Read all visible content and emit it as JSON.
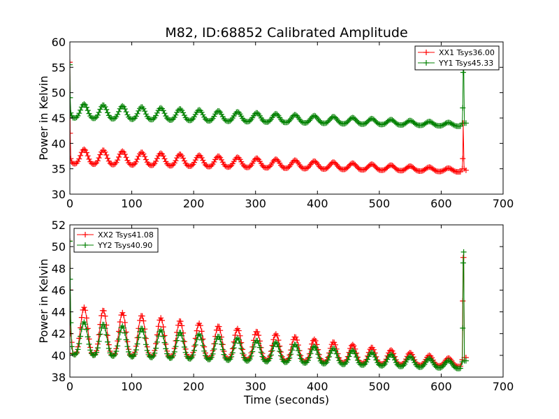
{
  "title": "M82, ID:68852 Calibrated Amplitude",
  "chart_data": [
    {
      "type": "line",
      "title": "M82, ID:68852 Calibrated Amplitude",
      "xlabel": "",
      "ylabel": "Power in Kelvin",
      "xlim": [
        0,
        700
      ],
      "ylim": [
        30,
        60
      ],
      "xticks": [
        "0",
        "100",
        "200",
        "300",
        "400",
        "500",
        "600",
        "700"
      ],
      "yticks": [
        "30",
        "35",
        "40",
        "45",
        "50",
        "55",
        "60"
      ],
      "grid": false,
      "legend_position": "top-right",
      "marker": "+",
      "series": [
        {
          "name": "XX1 Tsys36.00",
          "color": "#ff0000",
          "start": {
            "x": [
              0,
              0.5,
              1.5,
              3
            ],
            "y": [
              56.0,
              42.0,
              37.0,
              36.3
            ]
          },
          "baseline_start": 36.6,
          "baseline_end": 34.5,
          "peak_start": 2.4,
          "peak_end": 0.5,
          "period": 31,
          "first_peak": 23,
          "t_end": 632,
          "end": {
            "x": [
              634,
              634.8,
              635.5,
              637,
              640
            ],
            "y": [
              35.0,
              37.0,
              44.0,
              35.0,
              34.7
            ]
          }
        },
        {
          "name": "YY1 Tsys45.33",
          "color": "#008000",
          "start": {
            "x": [
              0,
              0.5,
              1.5,
              3
            ],
            "y": [
              55.5,
              49.0,
              46.0,
              45.4
            ]
          },
          "baseline_start": 45.6,
          "baseline_end": 43.5,
          "peak_start": 2.3,
          "peak_end": 0.5,
          "period": 31,
          "first_peak": 23,
          "t_end": 632,
          "end": {
            "x": [
              634,
              634.8,
              635.5,
              636.3,
              637.5,
              640
            ],
            "y": [
              44.0,
              47.0,
              54.0,
              56.0,
              44.0,
              44.0
            ]
          }
        }
      ]
    },
    {
      "type": "line",
      "xlabel": "Time (seconds)",
      "ylabel": "Power in Kelvin",
      "xlim": [
        0,
        700
      ],
      "ylim": [
        38,
        52
      ],
      "xticks": [
        "0",
        "100",
        "200",
        "300",
        "400",
        "500",
        "600",
        "700"
      ],
      "yticks": [
        "38",
        "40",
        "42",
        "44",
        "46",
        "48",
        "50",
        "52"
      ],
      "grid": false,
      "legend_position": "top-left",
      "marker": "+",
      "series": [
        {
          "name": "XX2 Tsys41.08",
          "color": "#ff0000",
          "start": {
            "x": [
              0,
              0.5,
              1.5,
              3
            ],
            "y": [
              50.5,
              46.0,
              42.0,
              41.2
            ]
          },
          "baseline_start": 41.0,
          "baseline_end": 39.1,
          "peak_start": 3.6,
          "peak_end": 0.5,
          "period": 31,
          "first_peak": 23,
          "t_end": 632,
          "end": {
            "x": [
              634,
              634.8,
              635.5,
              636.3,
              637.5,
              640
            ],
            "y": [
              39.6,
              45.0,
              49.0,
              49.0,
              39.8,
              39.8
            ]
          }
        },
        {
          "name": "YY2 Tsys40.90",
          "color": "#008000",
          "start": {
            "x": [
              0,
              0.5,
              1.5,
              3
            ],
            "y": [
              50.5,
              47.0,
              43.0,
              40.8
            ]
          },
          "baseline_start": 40.7,
          "baseline_end": 38.9,
          "peak_start": 2.5,
          "peak_end": 0.5,
          "period": 31,
          "first_peak": 23,
          "t_end": 632,
          "end": {
            "x": [
              634,
              634.8,
              635.5,
              636.3,
              637.5,
              640
            ],
            "y": [
              39.4,
              42.5,
              48.5,
              49.5,
              39.5,
              39.5
            ]
          }
        }
      ]
    }
  ]
}
